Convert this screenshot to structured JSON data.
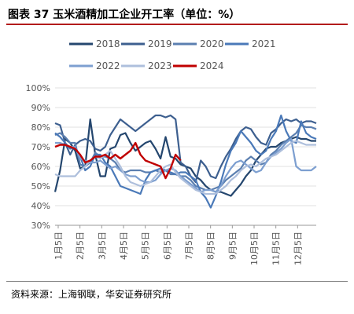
{
  "figure_title": "图表 37  玉米酒精加工企业开工率（单位：%）",
  "source": "资料来源：上海钢联，华安证券研究所",
  "chart_data": {
    "type": "line",
    "title": "",
    "xlabel": "",
    "ylabel": "",
    "ylim": [
      30,
      100
    ],
    "yticks": [
      "30%",
      "40%",
      "50%",
      "60%",
      "70%",
      "80%",
      "90%",
      "100%"
    ],
    "x_tick_labels": [
      "1月5日",
      "2月5日",
      "3月5日",
      "4月5日",
      "5月5日",
      "6月5日",
      "7月5日",
      "8月5日",
      "9月5日",
      "10月5日",
      "11月5日",
      "12月5日"
    ],
    "x_domain": [
      1,
      53
    ],
    "legend_position": "top",
    "series": [
      {
        "name": "2018",
        "color": "#24466e",
        "x": [
          1,
          2,
          3,
          4,
          5,
          6,
          7,
          8,
          9,
          10,
          11,
          12,
          13,
          14,
          15,
          16,
          17,
          18,
          19,
          20,
          21,
          22,
          23,
          24,
          25,
          26,
          27,
          28,
          29,
          30,
          31,
          32,
          33,
          34,
          35,
          36,
          37,
          38,
          39,
          40,
          41,
          42,
          43,
          44,
          45,
          46,
          47,
          48,
          49,
          50,
          51,
          52,
          53
        ],
        "values": [
          47,
          58,
          74,
          72,
          68,
          59,
          60,
          84,
          66,
          55,
          55,
          69,
          70,
          76,
          77,
          72,
          68,
          70,
          72,
          73,
          69,
          64,
          75,
          65,
          64,
          61,
          60,
          59,
          55,
          53,
          50,
          48,
          47,
          47,
          46,
          45,
          48,
          51,
          55,
          58,
          63,
          66,
          69,
          70,
          70,
          72,
          73,
          74,
          75,
          74,
          74,
          73,
          73
        ]
      },
      {
        "name": "2019",
        "color": "#3d5f8f",
        "x": [
          1,
          2,
          3,
          4,
          5,
          6,
          7,
          8,
          9,
          10,
          11,
          12,
          13,
          14,
          15,
          16,
          17,
          18,
          19,
          20,
          21,
          22,
          23,
          24,
          25,
          26,
          27,
          28,
          29,
          30,
          31,
          32,
          33,
          34,
          35,
          36,
          37,
          38,
          39,
          40,
          41,
          42,
          43,
          44,
          45,
          46,
          47,
          48,
          49,
          50,
          51,
          52,
          53
        ],
        "values": [
          82,
          81,
          72,
          66,
          71,
          73,
          74,
          73,
          69,
          68,
          70,
          76,
          80,
          84,
          82,
          80,
          78,
          80,
          82,
          84,
          86,
          86,
          85,
          86,
          84,
          62,
          60,
          55,
          52,
          63,
          60,
          55,
          54,
          60,
          65,
          69,
          74,
          78,
          80,
          79,
          75,
          72,
          71,
          77,
          79,
          82,
          84,
          83,
          84,
          82,
          83,
          83,
          82
        ]
      },
      {
        "name": "2020",
        "color": "#5b7fb0",
        "x": [
          1,
          2,
          3,
          4,
          5,
          6,
          7,
          8,
          9,
          10,
          11,
          12,
          13,
          14,
          15,
          16,
          17,
          18,
          19,
          20,
          21,
          22,
          23,
          24,
          25,
          26,
          27,
          28,
          29,
          30,
          31,
          32,
          33,
          34,
          35,
          36,
          37,
          38,
          39,
          40,
          41,
          42,
          43,
          44,
          45,
          46,
          47,
          48,
          49,
          50,
          51,
          52,
          53
        ],
        "values": [
          76,
          77,
          75,
          72,
          72,
          61,
          60,
          62,
          67,
          65,
          65,
          64,
          62,
          58,
          57,
          58,
          58,
          58,
          57,
          57,
          58,
          57,
          58,
          56,
          56,
          55,
          55,
          53,
          50,
          49,
          48,
          48,
          49,
          50,
          53,
          55,
          57,
          59,
          63,
          65,
          63,
          61,
          62,
          66,
          68,
          71,
          73,
          75,
          77,
          81,
          80,
          80,
          79
        ]
      },
      {
        "name": "2021",
        "color": "#4a79b8",
        "x": [
          1,
          2,
          3,
          4,
          5,
          6,
          7,
          8,
          9,
          10,
          11,
          12,
          13,
          14,
          15,
          16,
          17,
          18,
          19,
          20,
          21,
          22,
          23,
          24,
          25,
          26,
          27,
          28,
          29,
          30,
          31,
          32,
          33,
          34,
          35,
          36,
          37,
          38,
          39,
          40,
          41,
          42,
          43,
          44,
          45,
          46,
          47,
          48,
          49,
          50,
          51,
          52,
          53
        ],
        "values": [
          77,
          75,
          72,
          69,
          70,
          65,
          58,
          60,
          66,
          66,
          62,
          60,
          55,
          50,
          49,
          48,
          47,
          46,
          53,
          57,
          58,
          59,
          58,
          57,
          56,
          57,
          57,
          55,
          53,
          47,
          44,
          39,
          45,
          52,
          61,
          68,
          72,
          78,
          75,
          72,
          68,
          66,
          68,
          74,
          78,
          86,
          78,
          73,
          72,
          83,
          77,
          75,
          74
        ]
      },
      {
        "name": "2022",
        "color": "#7d9fd0",
        "x": [
          1,
          2,
          3,
          4,
          5,
          6,
          7,
          8,
          9,
          10,
          11,
          12,
          13,
          14,
          15,
          16,
          17,
          18,
          19,
          20,
          21,
          22,
          23,
          24,
          25,
          26,
          27,
          28,
          29,
          30,
          31,
          32,
          33,
          34,
          35,
          36,
          37,
          38,
          39,
          40,
          41,
          42,
          43,
          44,
          45,
          46,
          47,
          48,
          49,
          50,
          51,
          52,
          53
        ],
        "values": [
          72,
          72,
          71,
          70,
          70,
          64,
          63,
          62,
          62,
          63,
          61,
          59,
          60,
          58,
          56,
          55,
          55,
          53,
          52,
          52,
          53,
          56,
          58,
          59,
          58,
          55,
          53,
          51,
          49,
          47,
          48,
          48,
          47,
          50,
          55,
          59,
          62,
          63,
          61,
          59,
          57,
          58,
          62,
          65,
          67,
          69,
          72,
          74,
          60,
          58,
          58,
          58,
          60
        ]
      },
      {
        "name": "2023",
        "color": "#aebfdc",
        "x": [
          1,
          2,
          3,
          4,
          5,
          6,
          7,
          8,
          9,
          10,
          11,
          12,
          13,
          14,
          15,
          16,
          17,
          18,
          19,
          20,
          21,
          22,
          23,
          24,
          25,
          26,
          27,
          28,
          29,
          30,
          31,
          32,
          33,
          34,
          35,
          36,
          37,
          38,
          39,
          40,
          41,
          42,
          43,
          44,
          45,
          46,
          47,
          48,
          49,
          50,
          51,
          52,
          53
        ],
        "values": [
          56,
          55,
          55,
          55,
          55,
          58,
          60,
          63,
          65,
          64,
          66,
          68,
          64,
          60,
          55,
          52,
          51,
          50,
          51,
          52,
          55,
          58,
          60,
          61,
          57,
          54,
          52,
          50,
          48,
          47,
          46,
          46,
          46,
          48,
          50,
          53,
          55,
          58,
          60,
          61,
          60,
          62,
          64,
          65,
          66,
          68,
          70,
          72,
          73,
          72,
          71,
          71,
          71
        ]
      },
      {
        "name": "2024",
        "color": "#c00000",
        "x": [
          1,
          2,
          3,
          4,
          5,
          6,
          7,
          8,
          9,
          10,
          11,
          12,
          13,
          14,
          15,
          16,
          17,
          18,
          19,
          20,
          21,
          22,
          23,
          24,
          25,
          26
        ],
        "values": [
          70,
          71,
          71,
          70,
          69,
          66,
          62,
          63,
          65,
          65,
          66,
          64,
          66,
          64,
          66,
          68,
          72,
          66,
          63,
          62,
          61,
          60,
          54,
          59,
          66,
          63
        ]
      }
    ]
  }
}
